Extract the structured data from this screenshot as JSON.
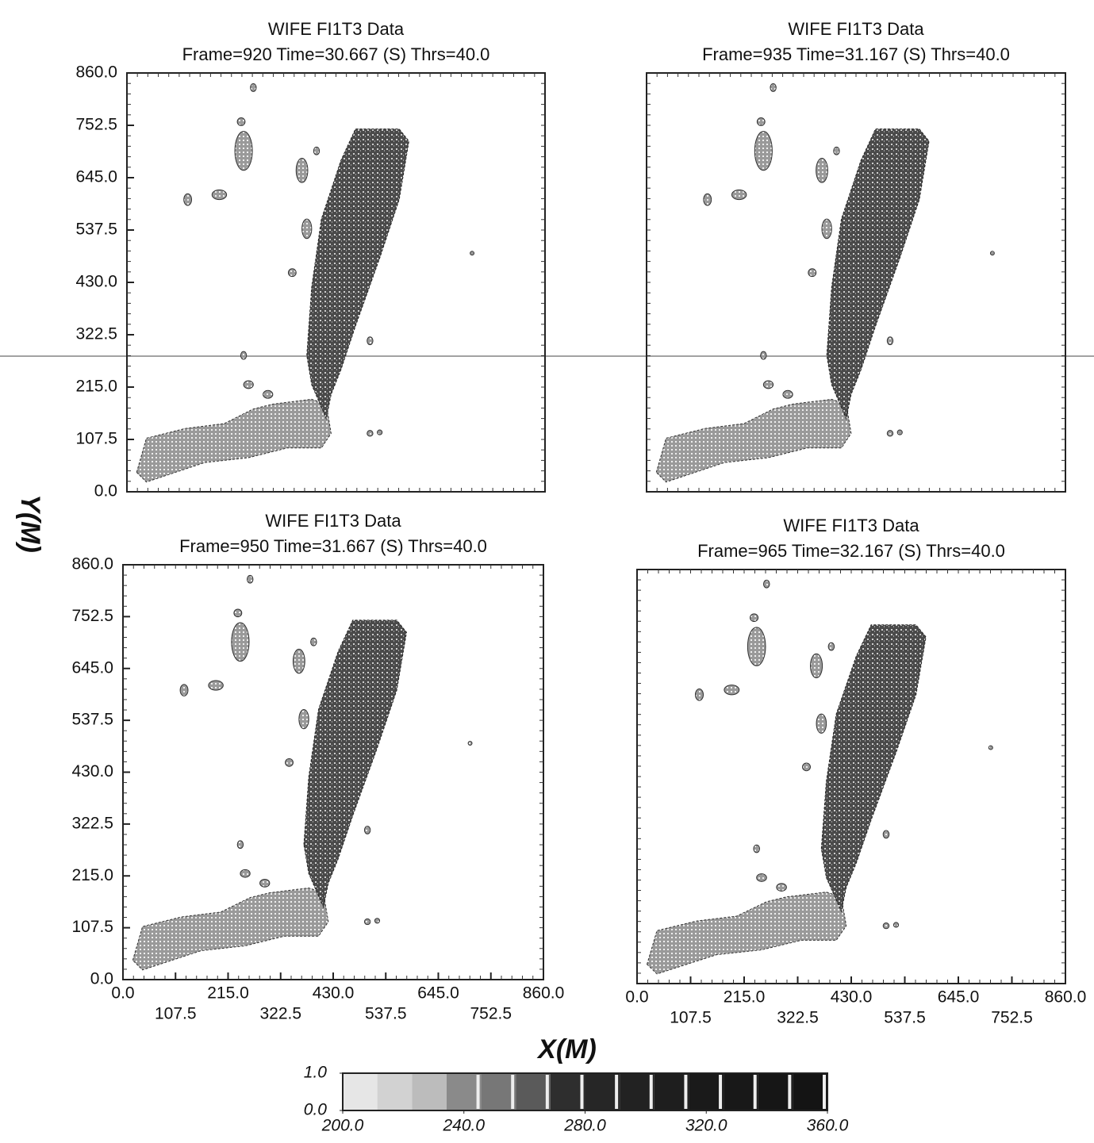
{
  "chart_data": [
    {
      "type": "contour",
      "title": "WIFE FI1T3 Data",
      "subtitle": "Frame=920 Time=30.667 (S) Thrs=40.0",
      "xlim": [
        0,
        860
      ],
      "ylim": [
        0,
        860
      ],
      "yticks": [
        {
          "value": 0,
          "label": "0.0"
        },
        107.5,
        {
          "value": 215,
          "label": "215.0"
        },
        322.5,
        {
          "value": 430,
          "label": "430.0"
        },
        537.5,
        {
          "value": 645,
          "label": "645.0"
        },
        752.5,
        {
          "value": 860,
          "label": "860.0"
        }
      ]
    },
    {
      "type": "contour",
      "title": "WIFE FI1T3 Data",
      "subtitle": "Frame=935 Time=31.167 (S) Thrs=40.0",
      "xlim": [
        0,
        860
      ],
      "ylim": [
        0,
        860
      ]
    },
    {
      "type": "contour",
      "title": "WIFE FI1T3 Data",
      "subtitle": "Frame=950 Time=31.667 (S) Thrs=40.0",
      "xlim": [
        0,
        860
      ],
      "ylim": [
        0,
        860
      ],
      "xticks": [
        {
          "value": 0,
          "label": "0.0"
        },
        107.5,
        {
          "value": 215,
          "label": "215.0"
        },
        322.5,
        {
          "value": 430,
          "label": "430.0"
        },
        537.5,
        {
          "value": 645,
          "label": "645.0"
        },
        752.5,
        {
          "value": 860,
          "label": "860.0"
        }
      ],
      "yticks": [
        {
          "value": 0,
          "label": "0.0"
        },
        107.5,
        {
          "value": 215,
          "label": "215.0"
        },
        322.5,
        {
          "value": 430,
          "label": "430.0"
        },
        537.5,
        {
          "value": 645,
          "label": "645.0"
        },
        752.5,
        {
          "value": 860,
          "label": "860.0"
        }
      ]
    },
    {
      "type": "contour",
      "title": "WIFE FI1T3 Data",
      "subtitle": "Frame=965 Time=32.167 (S) Thrs=40.0",
      "xlim": [
        0,
        860
      ],
      "ylim": [
        0,
        860
      ],
      "xticks": [
        {
          "value": 0,
          "label": "0.0"
        },
        107.5,
        {
          "value": 215,
          "label": "215.0"
        },
        322.5,
        {
          "value": 430,
          "label": "430.0"
        },
        537.5,
        {
          "value": 645,
          "label": "645.0"
        },
        752.5,
        {
          "value": 860,
          "label": "860.0"
        }
      ]
    }
  ],
  "axis_labels": {
    "x": "X(M)",
    "y": "Y(M)"
  },
  "colorbar": {
    "xlim": [
      200,
      360
    ],
    "xticks": [
      {
        "value": 200,
        "label": "200.0"
      },
      {
        "value": 240,
        "label": "240.0"
      },
      {
        "value": 280,
        "label": "280.0"
      },
      {
        "value": 320,
        "label": "320.0"
      },
      {
        "value": 360,
        "label": "360.0"
      }
    ],
    "ylim": [
      0,
      1
    ],
    "yticks": [
      {
        "value": 0,
        "label": "0.0"
      },
      {
        "value": 1,
        "label": "1.0"
      }
    ],
    "colors": [
      "#e6e6e6",
      "#d2d2d2",
      "#bcbcbc",
      "#8a8a8a",
      "#777777",
      "#5a5a5a",
      "#2e2e2e",
      "#262626",
      "#222222",
      "#1e1e1e",
      "#1a1a1a",
      "#181818",
      "#161616",
      "#141414"
    ]
  }
}
